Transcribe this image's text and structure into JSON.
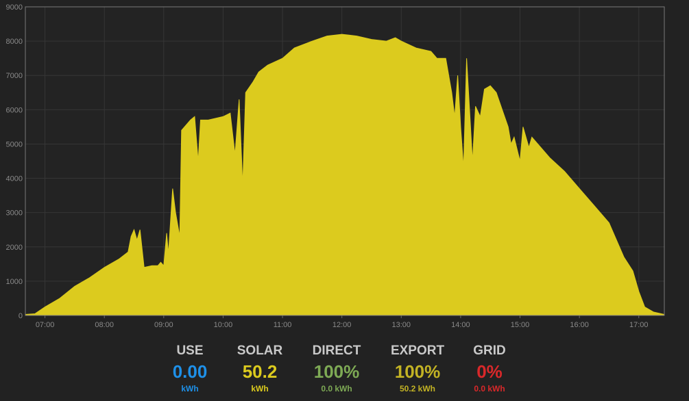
{
  "chart_data": {
    "type": "area",
    "title": "",
    "xlabel": "",
    "ylabel": "",
    "x_unit": "hours",
    "xlim": [
      6.67,
      17.43
    ],
    "ylim": [
      0,
      9000
    ],
    "yticks": [
      0,
      1000,
      2000,
      3000,
      4000,
      5000,
      6000,
      7000,
      8000,
      9000
    ],
    "xticks": [
      {
        "value": 7,
        "label": "07:00"
      },
      {
        "value": 8,
        "label": "08:00"
      },
      {
        "value": 9,
        "label": "09:00"
      },
      {
        "value": 10,
        "label": "10:00"
      },
      {
        "value": 11,
        "label": "11:00"
      },
      {
        "value": 12,
        "label": "12:00"
      },
      {
        "value": 13,
        "label": "13:00"
      },
      {
        "value": 14,
        "label": "14:00"
      },
      {
        "value": 15,
        "label": "15:00"
      },
      {
        "value": 16,
        "label": "16:00"
      },
      {
        "value": 17,
        "label": "17:00"
      }
    ],
    "grid": true,
    "series": [
      {
        "color": "#dccb1e",
        "points": [
          [
            6.67,
            30
          ],
          [
            6.83,
            50
          ],
          [
            7.0,
            250
          ],
          [
            7.25,
            500
          ],
          [
            7.5,
            850
          ],
          [
            7.75,
            1100
          ],
          [
            8.0,
            1400
          ],
          [
            8.25,
            1650
          ],
          [
            8.4,
            1850
          ],
          [
            8.45,
            2300
          ],
          [
            8.5,
            2500
          ],
          [
            8.55,
            2200
          ],
          [
            8.6,
            2500
          ],
          [
            8.67,
            1400
          ],
          [
            8.8,
            1450
          ],
          [
            8.9,
            1450
          ],
          [
            8.95,
            1550
          ],
          [
            9.0,
            1450
          ],
          [
            9.05,
            2400
          ],
          [
            9.08,
            1800
          ],
          [
            9.15,
            3700
          ],
          [
            9.2,
            3000
          ],
          [
            9.27,
            2300
          ],
          [
            9.3,
            5400
          ],
          [
            9.45,
            5700
          ],
          [
            9.52,
            5800
          ],
          [
            9.58,
            4500
          ],
          [
            9.62,
            5700
          ],
          [
            9.75,
            5700
          ],
          [
            10.0,
            5800
          ],
          [
            10.12,
            5900
          ],
          [
            10.2,
            4700
          ],
          [
            10.27,
            6300
          ],
          [
            10.33,
            3800
          ],
          [
            10.38,
            6500
          ],
          [
            10.5,
            6800
          ],
          [
            10.6,
            7100
          ],
          [
            10.75,
            7300
          ],
          [
            11.0,
            7500
          ],
          [
            11.2,
            7800
          ],
          [
            11.5,
            8000
          ],
          [
            11.75,
            8150
          ],
          [
            12.0,
            8200
          ],
          [
            12.25,
            8150
          ],
          [
            12.5,
            8050
          ],
          [
            12.75,
            8000
          ],
          [
            12.9,
            8100
          ],
          [
            13.0,
            8000
          ],
          [
            13.25,
            7800
          ],
          [
            13.5,
            7700
          ],
          [
            13.6,
            7500
          ],
          [
            13.75,
            7500
          ],
          [
            13.85,
            6500
          ],
          [
            13.9,
            5800
          ],
          [
            13.95,
            7000
          ],
          [
            14.0,
            5500
          ],
          [
            14.05,
            4300
          ],
          [
            14.1,
            7500
          ],
          [
            14.15,
            6000
          ],
          [
            14.2,
            4500
          ],
          [
            14.25,
            6100
          ],
          [
            14.33,
            5800
          ],
          [
            14.4,
            6600
          ],
          [
            14.5,
            6700
          ],
          [
            14.6,
            6500
          ],
          [
            14.7,
            6000
          ],
          [
            14.8,
            5500
          ],
          [
            14.85,
            5000
          ],
          [
            14.9,
            5200
          ],
          [
            15.0,
            4500
          ],
          [
            15.05,
            5500
          ],
          [
            15.15,
            4900
          ],
          [
            15.2,
            5200
          ],
          [
            15.3,
            5000
          ],
          [
            15.5,
            4600
          ],
          [
            15.75,
            4200
          ],
          [
            16.0,
            3700
          ],
          [
            16.25,
            3200
          ],
          [
            16.5,
            2700
          ],
          [
            16.75,
            1700
          ],
          [
            16.9,
            1300
          ],
          [
            17.0,
            700
          ],
          [
            17.1,
            250
          ],
          [
            17.25,
            100
          ],
          [
            17.43,
            30
          ]
        ]
      }
    ]
  },
  "stats": [
    {
      "label": "USE",
      "value": "0.00",
      "sub": "kWh",
      "color": "#1e90e8"
    },
    {
      "label": "SOLAR",
      "value": "50.2",
      "sub": "kWh",
      "color": "#dccb1e"
    },
    {
      "label": "DIRECT",
      "value": "100%",
      "sub": "0.0 kWh",
      "color": "#7eaa55"
    },
    {
      "label": "EXPORT",
      "value": "100%",
      "sub": "50.2 kWh",
      "color": "#c3b324"
    },
    {
      "label": "GRID",
      "value": "0%",
      "sub": "0.0 kWh",
      "color": "#d9282a"
    }
  ]
}
